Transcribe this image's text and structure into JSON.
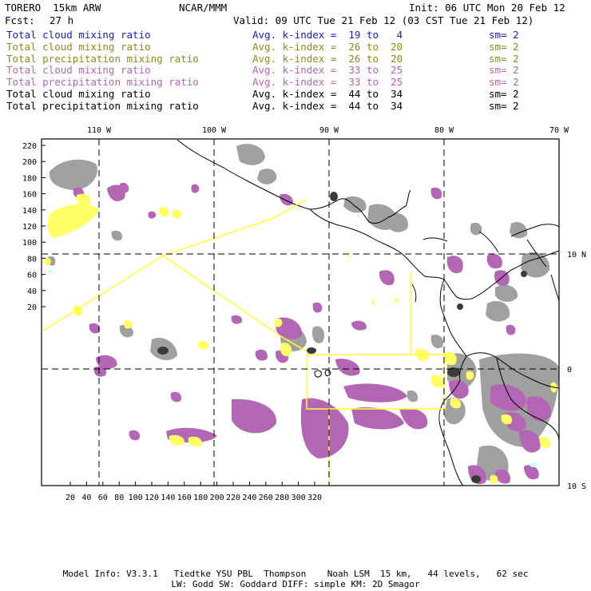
{
  "header": {
    "model": "TORERO  15km ARW",
    "org": "NCAR/MMM",
    "init": "Init: 06 UTC Mon 20 Feb 12",
    "fcst_label": "Fcst:",
    "fcst_value": "27 h",
    "valid": "Valid: 09 UTC Tue 21 Feb 12 (03 CST Tue 21 Feb 12)"
  },
  "legend": [
    {
      "field": "Total cloud mixing ratio",
      "index": "Avg. k-index =  19 to   4",
      "sm": "sm= 2",
      "color": "#1a1acc"
    },
    {
      "field": "Total cloud mixing ratio",
      "index": "Avg. k-index =  26 to  20",
      "sm": "sm= 2",
      "color": "#8c8c1a"
    },
    {
      "field": "Total precipitation mixing ratio",
      "index": "Avg. k-index =  26 to  20",
      "sm": "sm= 2",
      "color": "#8c8c1a"
    },
    {
      "field": "Total cloud mixing ratio",
      "index": "Avg. k-index =  33 to  25",
      "sm": "sm= 2",
      "color": "#b366b3"
    },
    {
      "field": "Total precipitation mixing ratio",
      "index": "Avg. k-index =  33 to  25",
      "sm": "sm= 2",
      "color": "#b366b3"
    },
    {
      "field": "Total cloud mixing ratio",
      "index": "Avg. k-index =  44 to  34",
      "sm": "sm= 2",
      "color": "#000000"
    },
    {
      "field": "Total precipitation mixing ratio",
      "index": "Avg. k-index =  44 to  34",
      "sm": "sm= 2",
      "color": "#000000"
    }
  ],
  "map": {
    "lon_labels": [
      "110 W",
      "100 W",
      "90 W",
      "80 W",
      "70 W"
    ],
    "lat_labels": [
      "10 N",
      "0",
      "10 S"
    ],
    "y_ticks": [
      "220",
      "200",
      "180",
      "160",
      "140",
      "120",
      "100",
      "80",
      "60",
      "40",
      "20"
    ],
    "x_ticks": [
      "20",
      "40",
      "60",
      "80",
      "100",
      "120",
      "140",
      "160",
      "180",
      "200",
      "220",
      "240",
      "260",
      "280",
      "300",
      "320"
    ],
    "region_letters": [
      "I",
      "C",
      "M"
    ],
    "colors": {
      "frame": "#000000",
      "flight_track": "#ffff33",
      "gray_cloud": "#9a9a9a",
      "dark_cloud": "#4a4a4a",
      "magenta_precip": "#b366b3",
      "yellow_cloud": "#ffff66"
    }
  },
  "footer": {
    "line1": "Model Info: V3.3.1   Tiedtke YSU PBL  Thompson    Noah LSM  15 km,   44 levels,   62 sec",
    "line2": "LW: Godd SW: Goddard DIFF: simple KM: 2D Smagor"
  }
}
